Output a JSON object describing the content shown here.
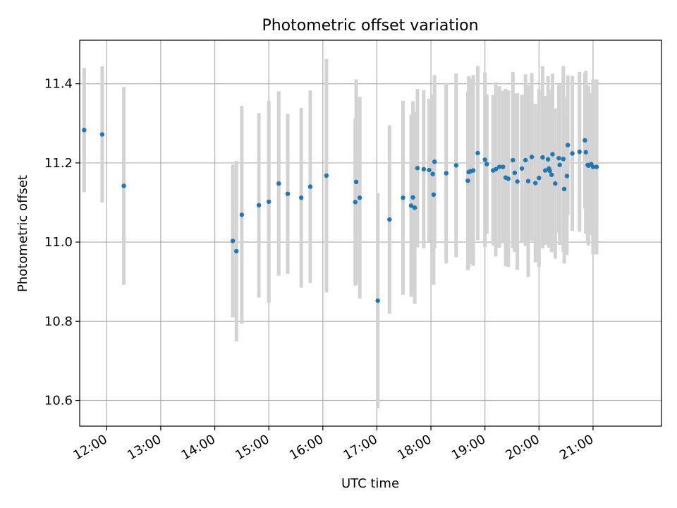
{
  "chart_data": {
    "type": "scatter",
    "title": "Photometric offset variation",
    "xlabel": "UTC time",
    "ylabel": "Photometric offset",
    "x_ticks": [
      "12:00",
      "13:00",
      "14:00",
      "15:00",
      "16:00",
      "17:00",
      "18:00",
      "19:00",
      "20:00",
      "21:00"
    ],
    "y_ticks": [
      10.6,
      10.8,
      11.0,
      11.2,
      11.4
    ],
    "xlim": [
      "11:30",
      "22:16"
    ],
    "ylim": [
      10.535,
      11.51
    ],
    "grid": true,
    "colors": {
      "point": "#1f77b4",
      "errorbar": "#d3d3d3",
      "grid": "#b0b0b0"
    },
    "series": [
      {
        "x": [
          "11:35",
          "11:55",
          "12:19",
          "14:20",
          "14:24",
          "14:30",
          "14:49",
          "15:00",
          "15:11",
          "15:21",
          "15:36",
          "15:46",
          "16:04",
          "16:36",
          "16:37",
          "16:41",
          "17:01",
          "17:14",
          "17:29",
          "17:38",
          "17:40",
          "17:42",
          "17:45",
          "17:52",
          "17:58",
          "18:02",
          "18:03",
          "18:04",
          "18:17",
          "18:28",
          "18:41",
          "18:42",
          "18:44",
          "18:47",
          "18:52",
          "19:00",
          "19:02",
          "19:09",
          "19:12",
          "19:16",
          "19:20",
          "19:23",
          "19:26",
          "19:31",
          "19:33",
          "19:36",
          "19:41",
          "19:45",
          "19:48",
          "19:52",
          "19:56",
          "20:00",
          "20:04",
          "20:07",
          "20:10",
          "20:11",
          "20:12",
          "20:14",
          "20:15",
          "20:18",
          "20:22",
          "20:23",
          "20:27",
          "20:28",
          "20:31",
          "20:32",
          "20:37",
          "20:45",
          "20:51",
          "20:52",
          "20:54",
          "20:55",
          "20:58",
          "21:00",
          "21:04"
        ],
        "y": [
          11.283,
          11.272,
          11.142,
          11.003,
          10.977,
          11.069,
          11.093,
          11.102,
          11.148,
          11.122,
          11.112,
          11.14,
          11.168,
          11.101,
          11.152,
          11.112,
          10.852,
          11.057,
          11.112,
          11.092,
          11.113,
          11.087,
          11.187,
          11.184,
          11.182,
          11.172,
          11.12,
          11.203,
          11.174,
          11.194,
          11.155,
          11.177,
          11.179,
          11.181,
          11.225,
          11.208,
          11.197,
          11.181,
          11.184,
          11.19,
          11.19,
          11.163,
          11.16,
          11.207,
          11.175,
          11.153,
          11.186,
          11.207,
          11.154,
          11.215,
          11.149,
          11.162,
          11.214,
          11.181,
          11.209,
          11.186,
          11.18,
          11.17,
          11.222,
          11.148,
          11.212,
          11.195,
          11.21,
          11.134,
          11.167,
          11.245,
          11.224,
          11.228,
          11.257,
          11.227,
          11.195,
          11.193,
          11.197,
          11.19,
          11.19
        ],
        "err": [
          0.157,
          0.172,
          0.25,
          0.193,
          0.228,
          0.275,
          0.233,
          0.255,
          0.233,
          0.202,
          0.227,
          0.243,
          0.295,
          0.211,
          0.259,
          0.255,
          0.272,
          0.238,
          0.245,
          0.23,
          0.243,
          0.243,
          0.2,
          0.2,
          0.18,
          0.2,
          0.228,
          0.219,
          0.228,
          0.232,
          0.226,
          0.242,
          0.234,
          0.241,
          0.22,
          0.22,
          0.176,
          0.19,
          0.22,
          0.204,
          0.193,
          0.224,
          0.223,
          0.223,
          0.2,
          0.223,
          0.186,
          0.217,
          0.242,
          0.212,
          0.2,
          0.224,
          0.23,
          0.188,
          0.21,
          0.2,
          0.18,
          0.195,
          0.203,
          0.19,
          0.188,
          0.202,
          0.235,
          0.188,
          0.2,
          0.176,
          0.196,
          0.202,
          0.171,
          0.206,
          0.192,
          0.202,
          0.179,
          0.221,
          0.221
        ]
      }
    ]
  }
}
